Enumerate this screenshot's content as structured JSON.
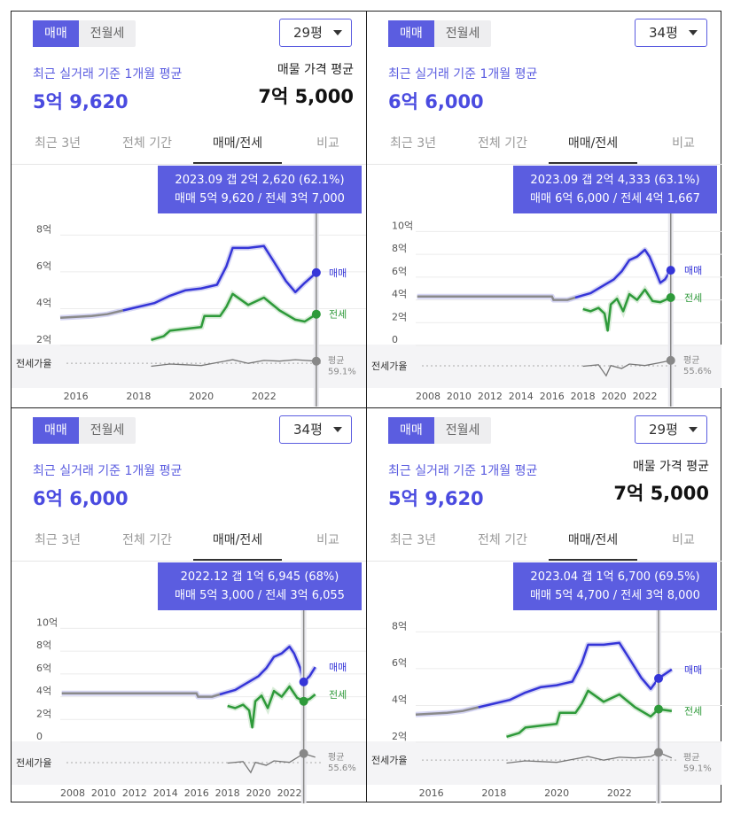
{
  "tabs": [
    "최근 3년",
    "전체 기간",
    "매매/전세",
    "비교"
  ],
  "toggle": [
    "매매",
    "전월세"
  ],
  "series_names": [
    "매매",
    "전세"
  ],
  "ratio_label": "전세가율",
  "avg_label": "최근 실거래 기준 1개월 평균",
  "chart_data": [
    {
      "type": "line",
      "size": "29평",
      "avg_value": "5억 9,620",
      "listing_label": "매물 가격 평균",
      "listing_value": "7억 5,000",
      "tooltip": {
        "line1": "2023.09  갭 2억 2,620 (62.1%)",
        "line2": "매매 5억 9,620 / 전세 3억 7,000"
      },
      "x_ticks": [
        2016,
        2018,
        2020,
        2022
      ],
      "xlim": [
        2015.5,
        2023.9
      ],
      "y_ticks": [
        {
          "v": 2,
          "label": "2억"
        },
        {
          "v": 4,
          "label": "4억"
        },
        {
          "v": 6,
          "label": "6억"
        },
        {
          "v": 8,
          "label": "8억"
        }
      ],
      "ylim": [
        2,
        8.5
      ],
      "marker_x": 2023.67,
      "ratio_avg": "평균\n59.1%",
      "sale": [
        [
          2015.5,
          3.5
        ],
        [
          2016,
          3.55
        ],
        [
          2016.5,
          3.6
        ],
        [
          2017,
          3.7
        ],
        [
          2017.5,
          3.9
        ],
        [
          2018,
          4.1
        ],
        [
          2018.5,
          4.3
        ],
        [
          2019,
          4.7
        ],
        [
          2019.5,
          5.0
        ],
        [
          2020,
          5.1
        ],
        [
          2020.5,
          5.3
        ],
        [
          2020.8,
          6.3
        ],
        [
          2021,
          7.3
        ],
        [
          2021.5,
          7.3
        ],
        [
          2022,
          7.4
        ],
        [
          2022.3,
          6.6
        ],
        [
          2022.7,
          5.5
        ],
        [
          2023,
          4.9
        ],
        [
          2023.3,
          5.4
        ],
        [
          2023.67,
          5.96
        ]
      ],
      "sale_grey_until": 2017.9,
      "jeonse": [
        [
          2018.4,
          2.3
        ],
        [
          2018.8,
          2.5
        ],
        [
          2019,
          2.8
        ],
        [
          2019.5,
          2.9
        ],
        [
          2020,
          3.0
        ],
        [
          2020.1,
          3.6
        ],
        [
          2020.6,
          3.6
        ],
        [
          2020.8,
          4.1
        ],
        [
          2021,
          4.8
        ],
        [
          2021.5,
          4.2
        ],
        [
          2022,
          4.6
        ],
        [
          2022.5,
          3.9
        ],
        [
          2023,
          3.4
        ],
        [
          2023.3,
          3.3
        ],
        [
          2023.67,
          3.7
        ]
      ],
      "ratio": [
        [
          2018.4,
          0.55
        ],
        [
          2019,
          0.58
        ],
        [
          2019.5,
          0.57
        ],
        [
          2020,
          0.56
        ],
        [
          2020.5,
          0.6
        ],
        [
          2021,
          0.64
        ],
        [
          2021.5,
          0.59
        ],
        [
          2022,
          0.63
        ],
        [
          2022.5,
          0.62
        ],
        [
          2023,
          0.64
        ],
        [
          2023.67,
          0.62
        ]
      ]
    },
    {
      "type": "line",
      "size": "34평",
      "avg_value": "6억 6,000",
      "listing_label": "",
      "listing_value": "",
      "tooltip": {
        "line1": "2023.09  갭 2억 4,333 (63.1%)",
        "line2": "매매 6억 6,000 / 전세 4억 1,667"
      },
      "x_ticks": [
        2008,
        2010,
        2012,
        2014,
        2016,
        2018,
        2020,
        2022
      ],
      "xlim": [
        2007.2,
        2024.2
      ],
      "y_ticks": [
        {
          "v": 0,
          "label": "0"
        },
        {
          "v": 2,
          "label": "2억"
        },
        {
          "v": 4,
          "label": "4억"
        },
        {
          "v": 6,
          "label": "6억"
        },
        {
          "v": 8,
          "label": "8억"
        },
        {
          "v": 10,
          "label": "10억"
        }
      ],
      "ylim": [
        0,
        10.5
      ],
      "marker_x": 2023.67,
      "ratio_avg": "평균\n55.6%",
      "sale": [
        [
          2007.3,
          4.3
        ],
        [
          2016,
          4.3
        ],
        [
          2016.1,
          4.0
        ],
        [
          2017,
          4.0
        ],
        [
          2017.5,
          4.2
        ],
        [
          2018,
          4.4
        ],
        [
          2018.5,
          4.6
        ],
        [
          2019,
          5.0
        ],
        [
          2019.5,
          5.4
        ],
        [
          2020,
          5.8
        ],
        [
          2020.5,
          6.5
        ],
        [
          2021,
          7.5
        ],
        [
          2021.5,
          7.8
        ],
        [
          2022,
          8.4
        ],
        [
          2022.3,
          7.8
        ],
        [
          2022.7,
          6.5
        ],
        [
          2023,
          5.5
        ],
        [
          2023.3,
          5.8
        ],
        [
          2023.67,
          6.6
        ]
      ],
      "sale_grey_until": 2017.8,
      "jeonse": [
        [
          2018,
          3.2
        ],
        [
          2018.5,
          3.0
        ],
        [
          2019,
          3.3
        ],
        [
          2019.4,
          2.8
        ],
        [
          2019.6,
          1.3
        ],
        [
          2019.8,
          3.6
        ],
        [
          2020.2,
          4.1
        ],
        [
          2020.6,
          3.0
        ],
        [
          2021,
          4.5
        ],
        [
          2021.5,
          4.0
        ],
        [
          2022,
          4.9
        ],
        [
          2022.5,
          3.9
        ],
        [
          2023,
          3.8
        ],
        [
          2023.67,
          4.2
        ]
      ],
      "ratio": [
        [
          2018,
          0.55
        ],
        [
          2019,
          0.57
        ],
        [
          2019.5,
          0.42
        ],
        [
          2019.8,
          0.56
        ],
        [
          2020.5,
          0.52
        ],
        [
          2021,
          0.58
        ],
        [
          2022,
          0.56
        ],
        [
          2023,
          0.6
        ],
        [
          2023.67,
          0.63
        ]
      ]
    },
    {
      "type": "line",
      "size": "34평",
      "avg_value": "6억 6,000",
      "listing_label": "",
      "listing_value": "",
      "tooltip": {
        "line1": "2022.12  갭 1억 6,945 (68%)",
        "line2": "매매 5억 3,000 / 전세 3억 6,055"
      },
      "x_ticks": [
        2008,
        2010,
        2012,
        2014,
        2016,
        2018,
        2020,
        2022
      ],
      "xlim": [
        2007.2,
        2024.2
      ],
      "y_ticks": [
        {
          "v": 0,
          "label": "0"
        },
        {
          "v": 2,
          "label": "2억"
        },
        {
          "v": 4,
          "label": "4억"
        },
        {
          "v": 6,
          "label": "6억"
        },
        {
          "v": 8,
          "label": "8억"
        },
        {
          "v": 10,
          "label": "10억"
        }
      ],
      "ylim": [
        0,
        10.5
      ],
      "marker_x": 2022.92,
      "ratio_avg": "평균\n55.6%",
      "sale": [
        [
          2007.3,
          4.3
        ],
        [
          2016,
          4.3
        ],
        [
          2016.1,
          4.0
        ],
        [
          2017,
          4.0
        ],
        [
          2017.5,
          4.2
        ],
        [
          2018,
          4.4
        ],
        [
          2018.5,
          4.6
        ],
        [
          2019,
          5.0
        ],
        [
          2019.5,
          5.4
        ],
        [
          2020,
          5.8
        ],
        [
          2020.5,
          6.5
        ],
        [
          2021,
          7.5
        ],
        [
          2021.5,
          7.8
        ],
        [
          2022,
          8.4
        ],
        [
          2022.3,
          7.8
        ],
        [
          2022.7,
          6.5
        ],
        [
          2022.92,
          5.3
        ],
        [
          2023.3,
          5.8
        ],
        [
          2023.67,
          6.6
        ]
      ],
      "sale_grey_until": 2017.8,
      "jeonse": [
        [
          2018,
          3.2
        ],
        [
          2018.5,
          3.0
        ],
        [
          2019,
          3.3
        ],
        [
          2019.4,
          2.8
        ],
        [
          2019.6,
          1.3
        ],
        [
          2019.8,
          3.6
        ],
        [
          2020.2,
          4.1
        ],
        [
          2020.6,
          3.0
        ],
        [
          2021,
          4.5
        ],
        [
          2021.5,
          4.0
        ],
        [
          2022,
          4.9
        ],
        [
          2022.5,
          3.9
        ],
        [
          2022.92,
          3.6
        ],
        [
          2023.3,
          3.8
        ],
        [
          2023.67,
          4.2
        ]
      ],
      "ratio": [
        [
          2018,
          0.55
        ],
        [
          2019,
          0.57
        ],
        [
          2019.5,
          0.42
        ],
        [
          2019.8,
          0.56
        ],
        [
          2020.5,
          0.52
        ],
        [
          2021,
          0.58
        ],
        [
          2022,
          0.56
        ],
        [
          2022.92,
          0.68
        ],
        [
          2023.67,
          0.63
        ]
      ]
    },
    {
      "type": "line",
      "size": "29평",
      "avg_value": "5억 9,620",
      "listing_label": "매물 가격 평균",
      "listing_value": "7억 5,000",
      "tooltip": {
        "line1": "2023.04  갭 1억 6,700 (69.5%)",
        "line2": "매매 5억 4,700 / 전세 3억 8,000"
      },
      "x_ticks": [
        2016,
        2018,
        2020,
        2022
      ],
      "xlim": [
        2015.5,
        2023.9
      ],
      "y_ticks": [
        {
          "v": 2,
          "label": "2억"
        },
        {
          "v": 4,
          "label": "4억"
        },
        {
          "v": 6,
          "label": "6억"
        },
        {
          "v": 8,
          "label": "8억"
        }
      ],
      "ylim": [
        2,
        8.5
      ],
      "marker_x": 2023.25,
      "ratio_avg": "평균\n59.1%",
      "sale": [
        [
          2015.5,
          3.5
        ],
        [
          2016,
          3.55
        ],
        [
          2016.5,
          3.6
        ],
        [
          2017,
          3.7
        ],
        [
          2017.5,
          3.9
        ],
        [
          2018,
          4.1
        ],
        [
          2018.5,
          4.3
        ],
        [
          2019,
          4.7
        ],
        [
          2019.5,
          5.0
        ],
        [
          2020,
          5.1
        ],
        [
          2020.5,
          5.3
        ],
        [
          2020.8,
          6.3
        ],
        [
          2021,
          7.3
        ],
        [
          2021.5,
          7.3
        ],
        [
          2022,
          7.4
        ],
        [
          2022.3,
          6.6
        ],
        [
          2022.7,
          5.5
        ],
        [
          2023,
          4.9
        ],
        [
          2023.25,
          5.47
        ],
        [
          2023.67,
          5.96
        ]
      ],
      "sale_grey_until": 2017.9,
      "jeonse": [
        [
          2018.4,
          2.3
        ],
        [
          2018.8,
          2.5
        ],
        [
          2019,
          2.8
        ],
        [
          2019.5,
          2.9
        ],
        [
          2020,
          3.0
        ],
        [
          2020.1,
          3.6
        ],
        [
          2020.6,
          3.6
        ],
        [
          2020.8,
          4.1
        ],
        [
          2021,
          4.8
        ],
        [
          2021.5,
          4.2
        ],
        [
          2022,
          4.6
        ],
        [
          2022.5,
          3.9
        ],
        [
          2023,
          3.4
        ],
        [
          2023.25,
          3.8
        ],
        [
          2023.67,
          3.7
        ]
      ],
      "ratio": [
        [
          2018.4,
          0.55
        ],
        [
          2019,
          0.58
        ],
        [
          2019.5,
          0.57
        ],
        [
          2020,
          0.56
        ],
        [
          2020.5,
          0.6
        ],
        [
          2021,
          0.64
        ],
        [
          2021.5,
          0.59
        ],
        [
          2022,
          0.63
        ],
        [
          2022.5,
          0.62
        ],
        [
          2023,
          0.64
        ],
        [
          2023.25,
          0.695
        ],
        [
          2023.67,
          0.62
        ]
      ]
    }
  ]
}
